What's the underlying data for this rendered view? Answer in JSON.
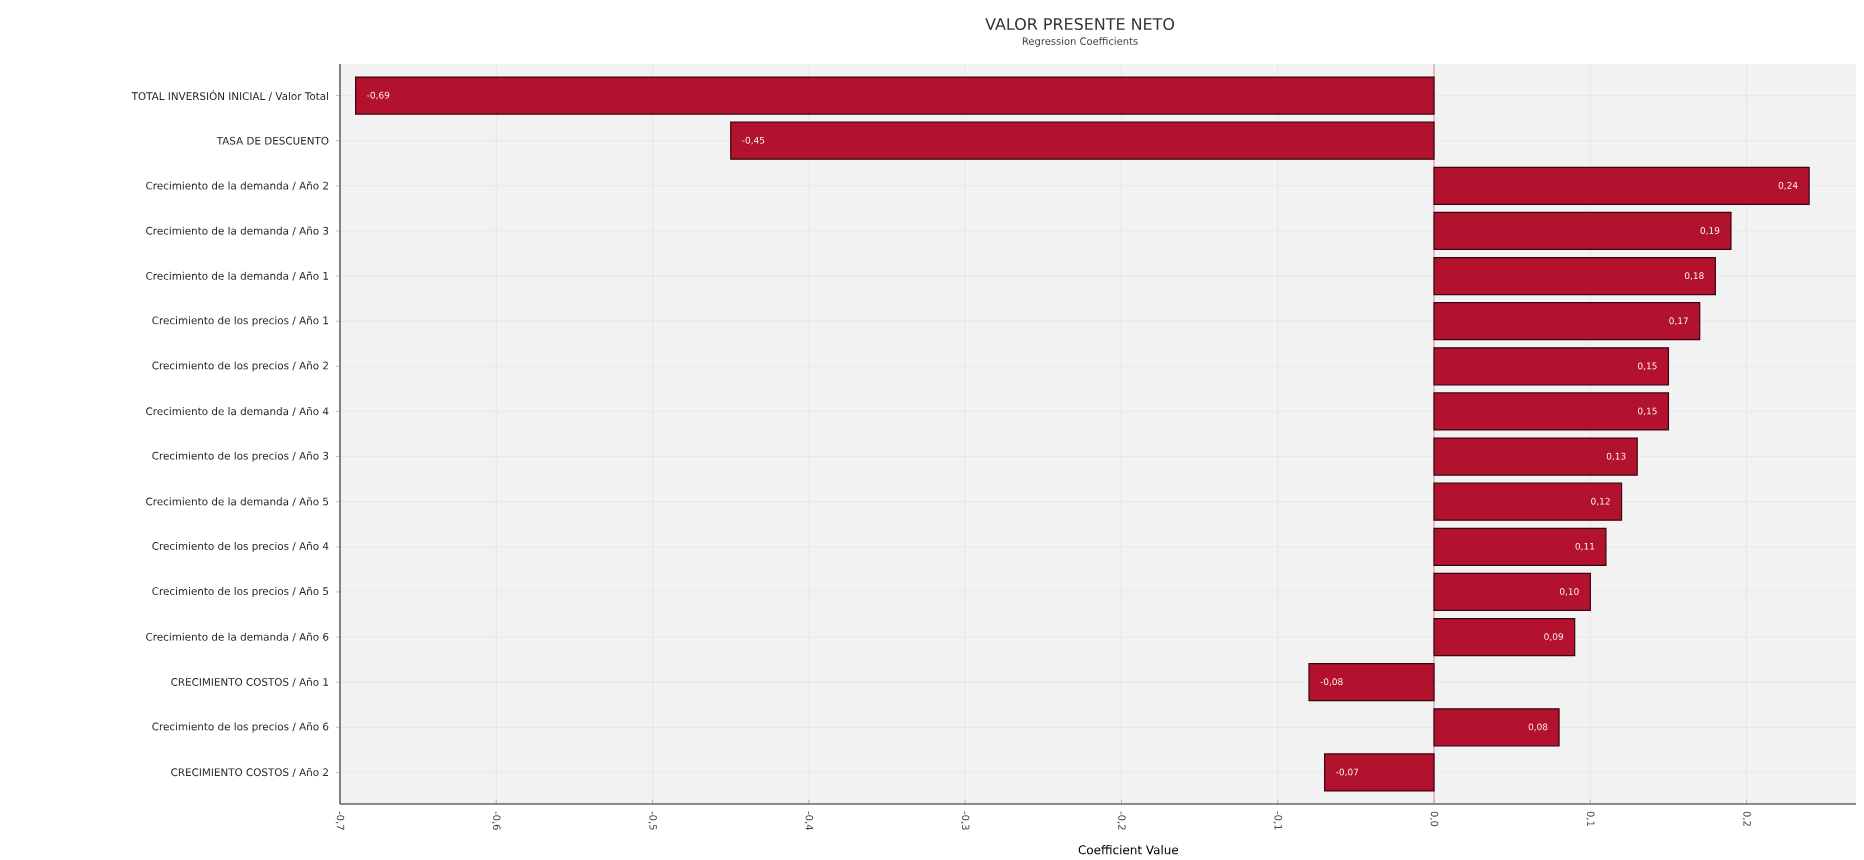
{
  "chart_data": {
    "type": "bar",
    "orientation": "horizontal",
    "title": "VALOR PRESENTE NETO",
    "subtitle": "Regression Coefficients",
    "xlabel": "Coefficient Value",
    "categories": [
      "TOTAL INVERSIÓN INICIAL / Valor Total",
      "TASA DE DESCUENTO",
      "Crecimiento de la demanda / Año 2",
      "Crecimiento de la demanda / Año 3",
      "Crecimiento de la demanda / Año 1",
      "Crecimiento de los precios / Año 1",
      "Crecimiento de los precios / Año 2",
      "Crecimiento de la demanda / Año 4",
      "Crecimiento de los precios / Año 3",
      "Crecimiento de la demanda / Año 5",
      "Crecimiento de los precios / Año 4",
      "Crecimiento de los precios / Año 5",
      "Crecimiento de la demanda / Año 6",
      "CRECIMIENTO COSTOS / Año 1",
      "Crecimiento de los precios / Año 6",
      "CRECIMIENTO COSTOS / Año 2"
    ],
    "values": [
      -0.69,
      -0.45,
      0.24,
      0.19,
      0.18,
      0.17,
      0.15,
      0.15,
      0.13,
      0.12,
      0.11,
      0.1,
      0.09,
      -0.08,
      0.08,
      -0.07
    ],
    "value_labels": [
      "-0,69",
      "-0,45",
      "0,24",
      "0,19",
      "0,18",
      "0,17",
      "0,15",
      "0,15",
      "0,13",
      "0,12",
      "0,11",
      "0,10",
      "0,09",
      "-0,08",
      "0,08",
      "-0,07"
    ],
    "color": "#b3122f",
    "xlim": [
      -0.7,
      0.27
    ],
    "xticks": [
      {
        "value": -0.7,
        "label": "-0,7"
      },
      {
        "value": -0.6,
        "label": "-0,6"
      },
      {
        "value": -0.5,
        "label": "-0,5"
      },
      {
        "value": -0.4,
        "label": "-0,4"
      },
      {
        "value": -0.3,
        "label": "-0,3"
      },
      {
        "value": -0.2,
        "label": "-0,2"
      },
      {
        "value": -0.1,
        "label": "-0,1"
      },
      {
        "value": 0,
        "label": "0,0"
      },
      {
        "value": 0.1,
        "label": "0,1"
      },
      {
        "value": 0.2,
        "label": "0,2"
      }
    ],
    "ref_lines": [
      {
        "axis": "x",
        "value": 0,
        "color": "#e8899a"
      }
    ],
    "grid": true
  }
}
